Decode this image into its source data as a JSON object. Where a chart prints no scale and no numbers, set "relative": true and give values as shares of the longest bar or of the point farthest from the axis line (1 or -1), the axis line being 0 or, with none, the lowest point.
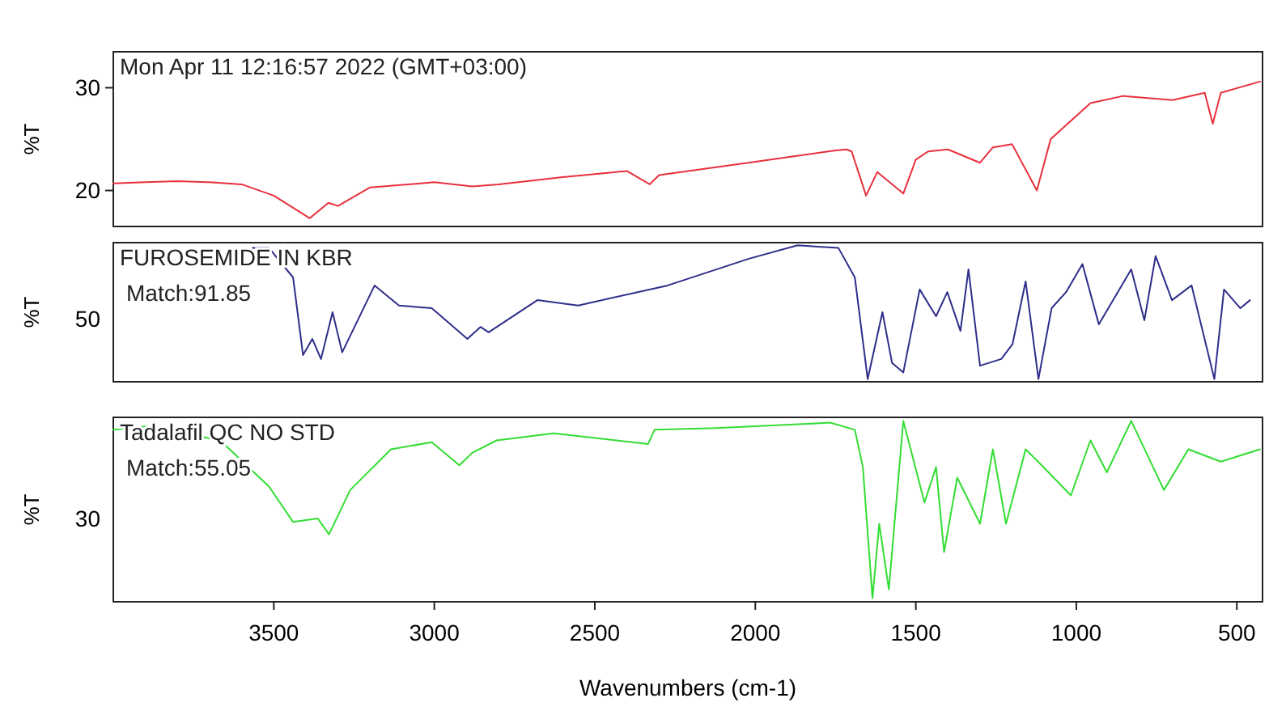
{
  "chart_data": [
    {
      "type": "line",
      "ylabel": "%T",
      "annotations": [
        "Mon Apr 11 12:16:57 2022 (GMT+03:00)"
      ],
      "xlim": [
        4000,
        420
      ],
      "ylim": [
        16.5,
        33.5
      ],
      "yticks": [
        20,
        30
      ],
      "tick_labels": "y",
      "grid": false,
      "series": [
        {
          "color": "#e8303c",
          "x": [
            4000,
            3900,
            3800,
            3700,
            3600,
            3500,
            3388,
            3330,
            3300,
            3200,
            3000,
            2882,
            2800,
            2600,
            2400,
            2329,
            2300,
            2000,
            1750,
            1716,
            1700,
            1655,
            1620,
            1539,
            1500,
            1462,
            1400,
            1300,
            1260,
            1200,
            1123,
            1080,
            956,
            854,
            700,
            600,
            575,
            550,
            428
          ],
          "values": [
            20.7,
            20.8,
            20.9,
            20.8,
            20.6,
            19.5,
            17.3,
            18.8,
            18.5,
            20.3,
            20.8,
            20.4,
            20.6,
            21.3,
            21.9,
            20.6,
            21.5,
            22.8,
            23.9,
            24,
            23.8,
            19.5,
            21.8,
            19.7,
            23,
            23.8,
            24,
            22.7,
            24.2,
            24.5,
            20,
            25,
            28.5,
            29.2,
            28.8,
            29.5,
            26.5,
            29.5,
            30.6
          ]
        }
      ]
    },
    {
      "type": "line",
      "relative": true,
      "ylabel": "%T",
      "annotations": [
        "FUROSEMIDE IN KBR",
        "Match:91.85",
        "50"
      ],
      "xlim": [
        4000,
        420
      ],
      "tick_labels": "y",
      "grid": false,
      "series": [
        {
          "color": "#2e2e8a",
          "x": [
            3566,
            3515,
            3440,
            3409,
            3380,
            3353,
            3317,
            3287,
            3186,
            3110,
            3008,
            2897,
            2856,
            2831,
            2679,
            2552,
            2273,
            2020,
            1868,
            1741,
            1690,
            1650,
            1604,
            1574,
            1539,
            1488,
            1437,
            1402,
            1361,
            1336,
            1300,
            1234,
            1199,
            1158,
            1118,
            1077,
            1032,
            981,
            930,
            829,
            788,
            753,
            702,
            641,
            570,
            540,
            489,
            459
          ],
          "values": [
            0.98,
            0.98,
            0.76,
            0.18,
            0.3,
            0.15,
            0.5,
            0.2,
            0.7,
            0.55,
            0.53,
            0.3,
            0.39,
            0.35,
            0.59,
            0.55,
            0.7,
            0.9,
            1,
            0.98,
            0.76,
            0,
            0.5,
            0.12,
            0.05,
            0.67,
            0.47,
            0.65,
            0.36,
            0.82,
            0.1,
            0.15,
            0.26,
            0.73,
            0,
            0.53,
            0.65,
            0.86,
            0.41,
            0.82,
            0.44,
            0.92,
            0.59,
            0.7,
            0,
            0.67,
            0.53,
            0.59
          ]
        }
      ]
    },
    {
      "type": "line",
      "relative": true,
      "ylabel": "%T",
      "xlabel": "Wavenumbers (cm-1)",
      "annotations": [
        "Tadalafil QC NO STD",
        "Match:55.05",
        "30"
      ],
      "xlim": [
        4000,
        420
      ],
      "xticks": [
        3500,
        3000,
        2500,
        2000,
        1500,
        1000,
        500
      ],
      "tick_labels": "x",
      "grid": false,
      "series": [
        {
          "color": "#33dd33",
          "x": [
            4000,
            3895,
            3667,
            3515,
            3440,
            3363,
            3328,
            3262,
            3135,
            3008,
            2922,
            2882,
            2806,
            2628,
            2334,
            2314,
            2121,
            1767,
            1690,
            1665,
            1635,
            1614,
            1584,
            1539,
            1473,
            1437,
            1412,
            1371,
            1300,
            1260,
            1219,
            1158,
            1108,
            1017,
            956,
            905,
            829,
            727,
            651,
            550,
            428
          ],
          "values": [
            0.95,
            0.97,
            0.89,
            0.63,
            0.43,
            0.45,
            0.36,
            0.61,
            0.84,
            0.88,
            0.75,
            0.82,
            0.89,
            0.93,
            0.87,
            0.95,
            0.96,
            0.99,
            0.95,
            0.74,
            0,
            0.42,
            0.05,
            1,
            0.54,
            0.74,
            0.26,
            0.68,
            0.42,
            0.84,
            0.42,
            0.84,
            0.75,
            0.58,
            0.89,
            0.71,
            1,
            0.61,
            0.84,
            0.77,
            0.84
          ]
        }
      ]
    }
  ]
}
